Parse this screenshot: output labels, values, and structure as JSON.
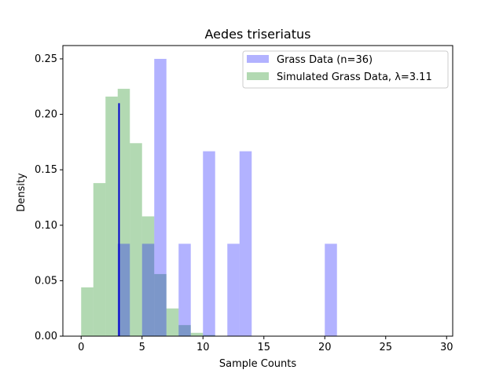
{
  "chart_data": {
    "type": "bar",
    "title": "Aedes triseriatus",
    "xlabel": "Sample Counts",
    "ylabel": "Density",
    "xlim": [
      -1.5,
      30.5
    ],
    "ylim": [
      0,
      0.262
    ],
    "xticks": [
      0,
      5,
      10,
      15,
      20,
      25,
      30
    ],
    "yticks": [
      0.0,
      0.05,
      0.1,
      0.15,
      0.2,
      0.25
    ],
    "legend_position": "top-right",
    "grid": false,
    "bin_width": 1,
    "series": [
      {
        "name": "Grass Data (n=36)",
        "color": "#0000ff",
        "opacity": 0.3,
        "bins": [
          {
            "x": 3,
            "y": 0.0833
          },
          {
            "x": 5,
            "y": 0.0833
          },
          {
            "x": 6,
            "y": 0.25
          },
          {
            "x": 8,
            "y": 0.0833
          },
          {
            "x": 10,
            "y": 0.1667
          },
          {
            "x": 12,
            "y": 0.0833
          },
          {
            "x": 13,
            "y": 0.1667
          },
          {
            "x": 20,
            "y": 0.0833
          }
        ]
      },
      {
        "name": "Simulated Grass Data, λ=3.11",
        "color": "#008000",
        "opacity": 0.3,
        "bins": [
          {
            "x": 0,
            "y": 0.044
          },
          {
            "x": 1,
            "y": 0.138
          },
          {
            "x": 2,
            "y": 0.216
          },
          {
            "x": 3,
            "y": 0.223
          },
          {
            "x": 4,
            "y": 0.174
          },
          {
            "x": 5,
            "y": 0.108
          },
          {
            "x": 6,
            "y": 0.056
          },
          {
            "x": 7,
            "y": 0.025
          },
          {
            "x": 8,
            "y": 0.01
          },
          {
            "x": 9,
            "y": 0.003
          },
          {
            "x": 10,
            "y": 0.001
          }
        ]
      }
    ],
    "vline": {
      "x": 3.11,
      "y_top": 0.21,
      "color": "#0000cc"
    }
  }
}
